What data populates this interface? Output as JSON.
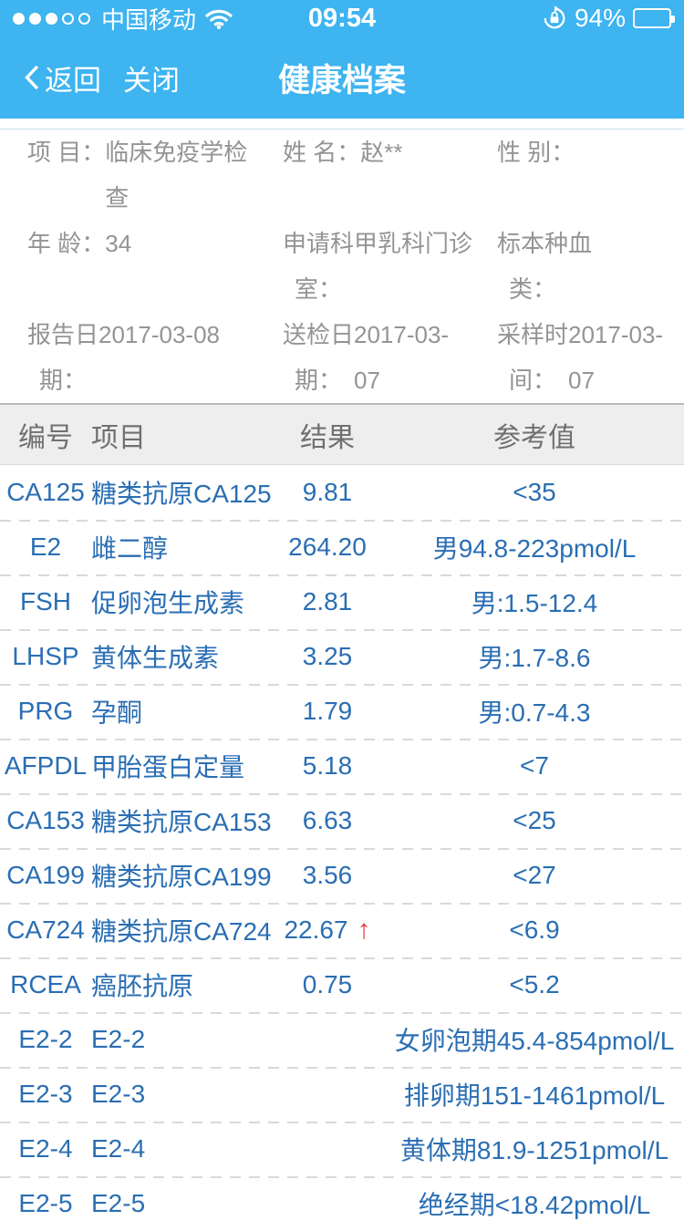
{
  "colors": {
    "header_blue": "#3eb4f0",
    "row_text_blue": "#2a6eb3",
    "alert_red": "#e53e3e"
  },
  "status_bar": {
    "signal_filled": 3,
    "signal_total": 5,
    "carrier": "中国移动",
    "time": "09:54",
    "battery_percent": "94%",
    "battery_level": 94,
    "icons": [
      "signal-dots",
      "wifi",
      "rotation-lock",
      "battery"
    ]
  },
  "nav": {
    "back_label": "返回",
    "close_label": "关闭",
    "title": "健康档案"
  },
  "patient": {
    "fields": [
      {
        "label1": "项 目：",
        "label2": "",
        "value1": "临床免疫学检",
        "value2": "查"
      },
      {
        "label1": "姓 名：",
        "label2": "",
        "value1": "赵**",
        "value2": ""
      },
      {
        "label1": "性 别：",
        "label2": "",
        "value1": "",
        "value2": ""
      },
      {
        "label1": "年 龄：",
        "label2": "",
        "value1": "34",
        "value2": ""
      },
      {
        "label1": "申请科",
        "label2": "室：",
        "value1": "甲乳科门诊",
        "value2": ""
      },
      {
        "label1": "标本种",
        "label2": "类：",
        "value1": "血",
        "value2": ""
      },
      {
        "label1": "报告日",
        "label2": "期：",
        "value1": "2017-03-08",
        "value2": ""
      },
      {
        "label1": "送检日",
        "label2": "期：",
        "value1": "2017-03-",
        "value2": "07"
      },
      {
        "label1": "采样时",
        "label2": "间：",
        "value1": "2017-03-",
        "value2": "07"
      }
    ]
  },
  "table": {
    "headers": [
      "编号",
      "项目",
      "结果",
      "参考值"
    ],
    "rows": [
      {
        "code": "CA125",
        "item": "糖类抗原CA125",
        "result": "9.81",
        "flag": "",
        "ref": "<35"
      },
      {
        "code": "E2",
        "item": "雌二醇",
        "result": "264.20",
        "flag": "",
        "ref": "男94.8-223pmol/L"
      },
      {
        "code": "FSH",
        "item": "促卵泡生成素",
        "result": "2.81",
        "flag": "",
        "ref": "男:1.5-12.4"
      },
      {
        "code": "LHSP",
        "item": "黄体生成素",
        "result": "3.25",
        "flag": "",
        "ref": "男:1.7-8.6"
      },
      {
        "code": "PRG",
        "item": "孕酮",
        "result": "1.79",
        "flag": "",
        "ref": "男:0.7-4.3"
      },
      {
        "code": "AFPDL",
        "item": "甲胎蛋白定量",
        "result": "5.18",
        "flag": "",
        "ref": "<7"
      },
      {
        "code": "CA153",
        "item": "糖类抗原CA153",
        "result": "6.63",
        "flag": "",
        "ref": "<25"
      },
      {
        "code": "CA199",
        "item": "糖类抗原CA199",
        "result": "3.56",
        "flag": "",
        "ref": "<27"
      },
      {
        "code": "CA724",
        "item": "糖类抗原CA724",
        "result": "22.67",
        "flag": "↑",
        "ref": "<6.9"
      },
      {
        "code": "RCEA",
        "item": "癌胚抗原",
        "result": "0.75",
        "flag": "",
        "ref": "<5.2"
      },
      {
        "code": "E2-2",
        "item": "E2-2",
        "result": "",
        "flag": "",
        "ref": "女卵泡期45.4-854pmol/L"
      },
      {
        "code": "E2-3",
        "item": "E2-3",
        "result": "",
        "flag": "",
        "ref": "排卵期151-1461pmol/L"
      },
      {
        "code": "E2-4",
        "item": "E2-4",
        "result": "",
        "flag": "",
        "ref": "黄体期81.9-1251pmol/L"
      },
      {
        "code": "E2-5",
        "item": "E2-5",
        "result": "",
        "flag": "",
        "ref": "绝经期<18.42pmol/L"
      }
    ]
  }
}
